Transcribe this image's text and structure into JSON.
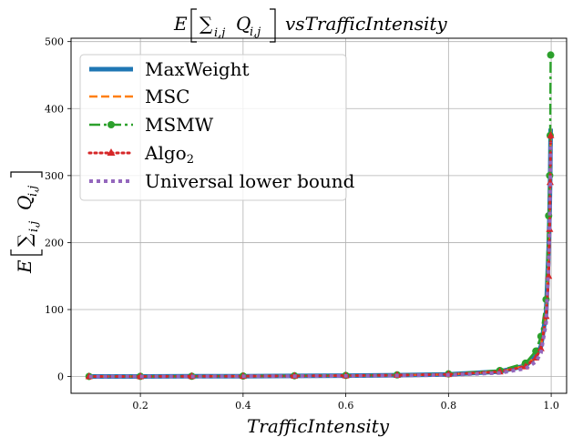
{
  "chart_data": {
    "type": "line",
    "title": "E [∑ Q] vsTrafficIntensity",
    "title_parts": {
      "E": "E",
      "sum": "∑",
      "sub": "i,j",
      "Q": "Q",
      "Qsub": "i,j",
      "rest": "vsTrafficIntensity"
    },
    "xlabel": "TrafficIntensity",
    "ylabel_parts": {
      "E": "E",
      "sum": "∑",
      "sub": "i,j",
      "Q": "Q",
      "Qsub": "i,j"
    },
    "xlim": [
      0.065,
      1.03
    ],
    "ylim": [
      -25,
      505
    ],
    "xticks": [
      0.2,
      0.4,
      0.6,
      0.8,
      1.0
    ],
    "xtick_labels": [
      "0.2",
      "0.4",
      "0.6",
      "0.8",
      "1.0"
    ],
    "yticks": [
      0,
      100,
      200,
      300,
      400,
      500
    ],
    "ytick_labels": [
      "0",
      "100",
      "200",
      "300",
      "400",
      "500"
    ],
    "grid": true,
    "legend_position": "top-left",
    "x": [
      0.1,
      0.2,
      0.3,
      0.4,
      0.5,
      0.6,
      0.7,
      0.8,
      0.9,
      0.95,
      0.97,
      0.98,
      0.99,
      0.995,
      0.997,
      0.998,
      0.999
    ],
    "series": [
      {
        "name": "MaxWeight",
        "color": "#1f77b4",
        "style": "solid-thick",
        "values": [
          0.1,
          0.2,
          0.4,
          0.6,
          1.0,
          1.4,
          2.1,
          3.3,
          7.5,
          16,
          30,
          45,
          95,
          190,
          250,
          300,
          370
        ]
      },
      {
        "name": "MSC",
        "color": "#ff7f0e",
        "style": "dashed",
        "values": [
          0.1,
          0.2,
          0.4,
          0.6,
          1.0,
          1.4,
          2.1,
          3.3,
          7.5,
          16,
          30,
          45,
          95,
          190,
          250,
          300,
          370
        ]
      },
      {
        "name": "MSMW",
        "color": "#2ca02c",
        "style": "dashdot-circle",
        "values": [
          0.2,
          0.3,
          0.5,
          0.8,
          1.2,
          1.7,
          2.5,
          4.0,
          9.0,
          20,
          38,
          60,
          115,
          240,
          300,
          360,
          480
        ]
      },
      {
        "name": "Algo",
        "name_sub": "2",
        "color": "#d62728",
        "style": "dotted-triangle",
        "values": [
          0.1,
          0.2,
          0.4,
          0.6,
          1.0,
          1.4,
          2.1,
          3.3,
          7.2,
          15,
          28,
          42,
          90,
          150,
          220,
          290,
          360
        ]
      },
      {
        "name": "Universal lower bound",
        "color": "#9467bd",
        "style": "dotted-thick",
        "values": [
          0.05,
          0.1,
          0.2,
          0.4,
          0.6,
          1.0,
          1.5,
          2.5,
          5.5,
          12,
          22,
          35,
          80,
          170,
          230,
          280,
          350
        ]
      }
    ]
  }
}
